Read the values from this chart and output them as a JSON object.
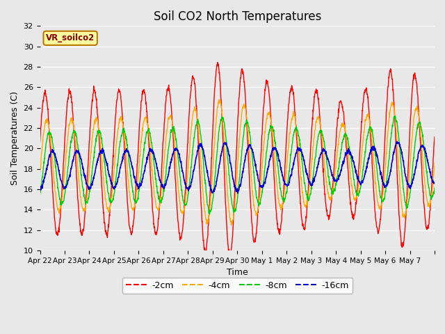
{
  "title": "Soil CO2 North Temperatures",
  "xlabel": "Time",
  "ylabel": "Soil Temperatures (C)",
  "ylim": [
    10,
    32
  ],
  "yticks": [
    10,
    12,
    14,
    16,
    18,
    20,
    22,
    24,
    26,
    28,
    30,
    32
  ],
  "series_labels": [
    "-2cm",
    "-4cm",
    "-8cm",
    "-16cm"
  ],
  "series_colors": [
    "#ff0000",
    "#ffaa00",
    "#00cc00",
    "#0000cc"
  ],
  "background_color": "#e8e8e8",
  "x_tick_labels": [
    "Apr 22",
    "Apr 23",
    "Apr 24",
    "Apr 25",
    "Apr 26",
    "Apr 27",
    "Apr 28",
    "Apr 29",
    "Apr 30",
    "May 1",
    "May 2",
    "May 3",
    "May 4",
    "May 5",
    "May 6",
    "May 7",
    ""
  ],
  "num_days": 16,
  "figwidth": 6.4,
  "figheight": 4.8,
  "dpi": 100
}
